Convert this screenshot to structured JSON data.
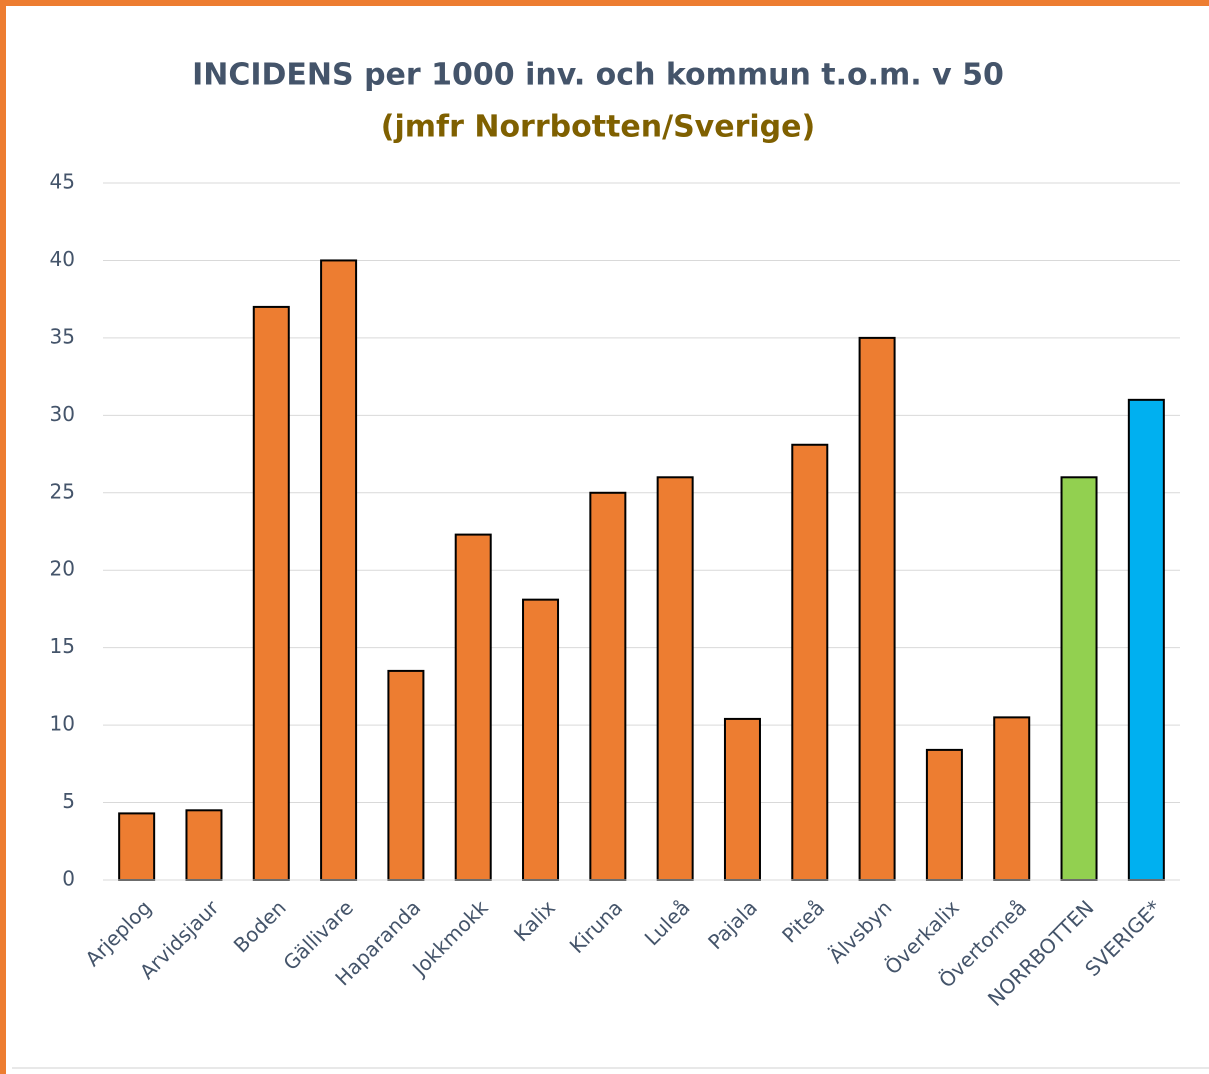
{
  "chart_data": {
    "type": "bar",
    "title": "INCIDENS per 1000 inv. och kommun t.o.m. v 50",
    "subtitle": "(jmfr Norrbotten/Sverige)",
    "categories": [
      "Arjeplog",
      "Arvidsjaur",
      "Boden",
      "Gällivare",
      "Haparanda",
      "Jokkmokk",
      "Kalix",
      "Kiruna",
      "Luleå",
      "Pajala",
      "Piteå",
      "Älvsbyn",
      "Överkalix",
      "Övertorneå",
      "NORRBOTTEN",
      "SVERIGE*"
    ],
    "values": [
      4.3,
      4.5,
      37,
      40,
      13.5,
      22.3,
      18.1,
      25,
      26,
      10.4,
      28.1,
      35,
      8.4,
      10.5,
      26,
      31
    ],
    "colors": [
      "#ed7d31",
      "#ed7d31",
      "#ed7d31",
      "#ed7d31",
      "#ed7d31",
      "#ed7d31",
      "#ed7d31",
      "#ed7d31",
      "#ed7d31",
      "#ed7d31",
      "#ed7d31",
      "#ed7d31",
      "#ed7d31",
      "#ed7d31",
      "#92d050",
      "#00b0f0"
    ],
    "ylim": [
      0,
      45
    ],
    "yticks": [
      0,
      5,
      10,
      15,
      20,
      25,
      30,
      35,
      40,
      45
    ],
    "grid": true
  }
}
